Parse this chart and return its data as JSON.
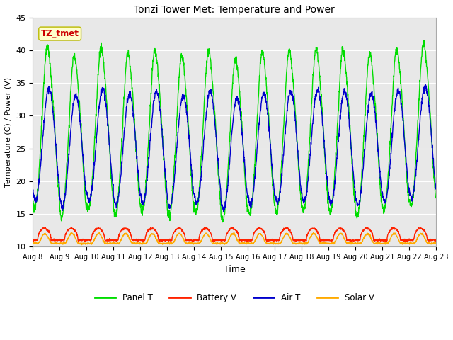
{
  "title": "Tonzi Tower Met: Temperature and Power",
  "xlabel": "Time",
  "ylabel": "Temperature (C) / Power (V)",
  "ylim": [
    10,
    45
  ],
  "annotation_text": "TZ_tmet",
  "annotation_bg": "#ffffcc",
  "annotation_border": "#bbbb00",
  "annotation_text_color": "#cc0000",
  "grid_color": "#ffffff",
  "bg_color": "#e8e8e8",
  "panel_t_color": "#00dd00",
  "battery_v_color": "#ff2200",
  "air_t_color": "#0000cc",
  "solar_v_color": "#ffaa00",
  "tick_labels": [
    "Aug 8",
    "Aug 9",
    "Aug 10",
    "Aug 11",
    "Aug 12",
    "Aug 13",
    "Aug 14",
    "Aug 15",
    "Aug 16",
    "Aug 17",
    "Aug 18",
    "Aug 19",
    "Aug 20",
    "Aug 21",
    "Aug 22",
    "Aug 23"
  ],
  "n_days": 15,
  "samples_per_day": 144
}
